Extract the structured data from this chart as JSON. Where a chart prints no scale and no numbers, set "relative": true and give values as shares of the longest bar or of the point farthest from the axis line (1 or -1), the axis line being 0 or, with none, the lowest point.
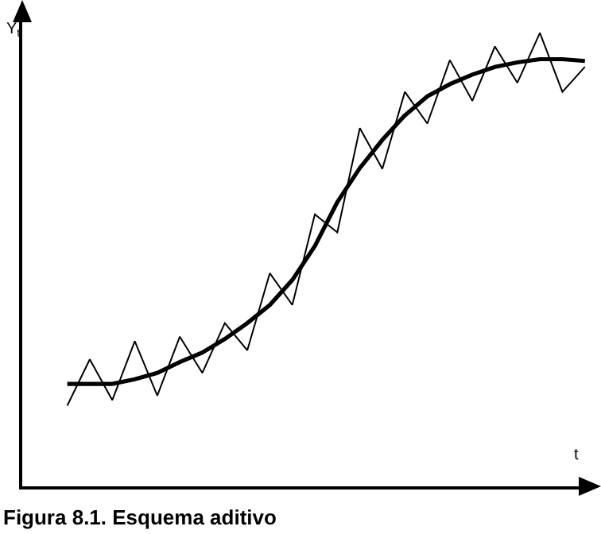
{
  "chart_data": {
    "type": "line",
    "title": "Figura 8.1. Esquema aditivo",
    "xlabel": "t",
    "ylabel": "Y$_{t}$",
    "relative": true,
    "marker": "none",
    "categories": [
      null,
      null,
      null,
      null,
      null,
      null,
      null,
      null,
      null,
      null,
      null,
      null,
      null,
      null,
      null,
      null,
      null,
      null,
      null,
      null,
      null,
      null,
      null,
      null
    ],
    "series": [
      {
        "color": "#000000",
        "line_style": "solid",
        "values": [
          0.178,
          0.28,
          0.19,
          0.32,
          0.2,
          0.33,
          0.25,
          0.36,
          0.3,
          0.47,
          0.4,
          0.6,
          0.56,
          0.79,
          0.7,
          0.87,
          0.8,
          0.94,
          0.85,
          0.97,
          0.89,
          1.0,
          0.87,
          0.925
        ]
      },
      {
        "color": "#000000",
        "line_style": "solid",
        "values": [
          0.226,
          0.226,
          0.226,
          0.236,
          0.25,
          0.274,
          0.295,
          0.325,
          0.36,
          0.4,
          0.455,
          0.53,
          0.627,
          0.702,
          0.764,
          0.818,
          0.86,
          0.887,
          0.908,
          0.925,
          0.935,
          0.942,
          0.942,
          0.938
        ]
      }
    ]
  }
}
